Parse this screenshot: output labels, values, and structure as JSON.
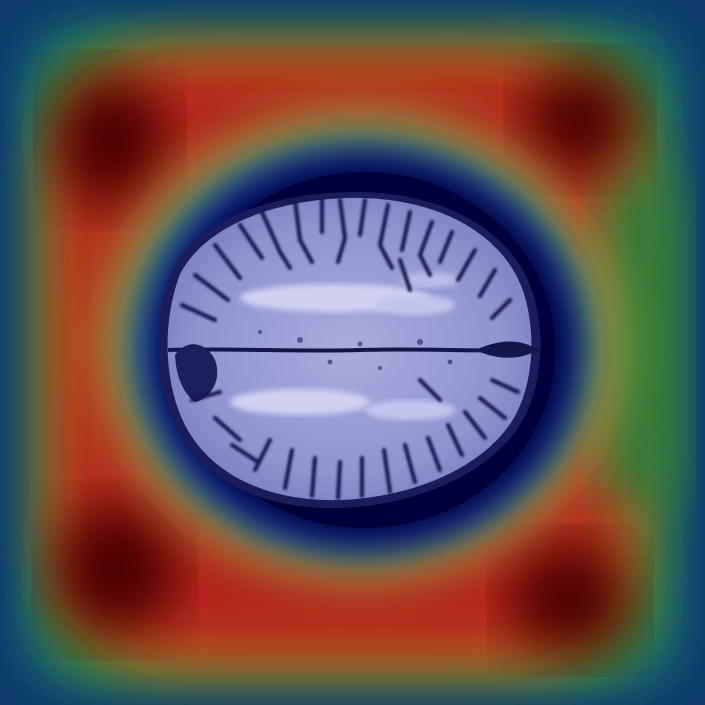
{
  "image": {
    "kind": "heatmap-overlay-on-axial-brain-mri",
    "text_labels": []
  },
  "colors": {
    "hot_corner": "#5a0505",
    "red": "#b3201c",
    "orange": "#c57a1c",
    "green": "#2f7a3e",
    "teal": "#1f6a6a",
    "outer_blue": "#103f6e",
    "deep_halo": "#00003d",
    "tissue_light": "#c8c9ee",
    "tissue_mid": "#8d92cf",
    "sulcus_dark": "#101446"
  },
  "icons": {
    "scan": "brain-mri-icon"
  }
}
